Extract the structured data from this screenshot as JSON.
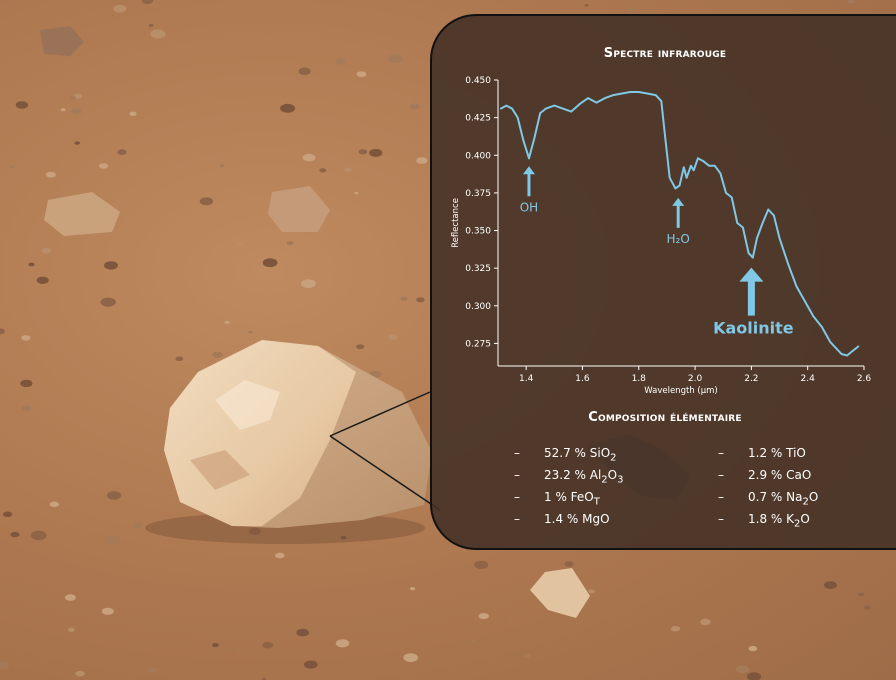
{
  "accent_color": "#7fc8e6",
  "panel": {
    "spectrum_title": "Spectre infrarouge",
    "composition_title": "Composition élémentaire"
  },
  "chart_data": {
    "type": "line",
    "title": "Spectre infrarouge",
    "xlabel": "Wavelength (µm)",
    "ylabel": "Reflectance",
    "xlim": [
      1.3,
      2.6
    ],
    "ylim": [
      0.26,
      0.45
    ],
    "xticks": [
      "1.4",
      "1.6",
      "1.8",
      "2.0",
      "2.2",
      "2.4",
      "2.6"
    ],
    "yticks": [
      "0.275",
      "0.300",
      "0.325",
      "0.350",
      "0.375",
      "0.400",
      "0.425",
      "0.450"
    ],
    "grid": false,
    "series": [
      {
        "color": "#7fc8e6",
        "x": [
          1.31,
          1.33,
          1.35,
          1.37,
          1.39,
          1.41,
          1.43,
          1.45,
          1.47,
          1.5,
          1.53,
          1.56,
          1.59,
          1.62,
          1.65,
          1.68,
          1.71,
          1.74,
          1.77,
          1.8,
          1.83,
          1.86,
          1.88,
          1.895,
          1.91,
          1.93,
          1.945,
          1.96,
          1.97,
          1.985,
          1.995,
          2.01,
          2.03,
          2.05,
          2.07,
          2.09,
          2.11,
          2.13,
          2.15,
          2.17,
          2.19,
          2.205,
          2.22,
          2.24,
          2.26,
          2.28,
          2.3,
          2.33,
          2.36,
          2.39,
          2.42,
          2.45,
          2.48,
          2.5,
          2.52,
          2.54,
          2.56,
          2.58
        ],
        "y": [
          0.431,
          0.433,
          0.431,
          0.425,
          0.41,
          0.398,
          0.412,
          0.428,
          0.431,
          0.433,
          0.431,
          0.429,
          0.434,
          0.438,
          0.435,
          0.438,
          0.44,
          0.441,
          0.442,
          0.442,
          0.441,
          0.44,
          0.436,
          0.41,
          0.385,
          0.378,
          0.38,
          0.392,
          0.385,
          0.393,
          0.39,
          0.398,
          0.396,
          0.393,
          0.393,
          0.388,
          0.375,
          0.372,
          0.355,
          0.352,
          0.335,
          0.332,
          0.345,
          0.355,
          0.364,
          0.36,
          0.345,
          0.328,
          0.313,
          0.303,
          0.293,
          0.286,
          0.276,
          0.272,
          0.268,
          0.267,
          0.27,
          0.273
        ]
      }
    ],
    "annotations": [
      {
        "text": "OH",
        "x": 1.41,
        "y": 0.398
      },
      {
        "text": "H₂O",
        "x": 1.94,
        "y": 0.377
      },
      {
        "text": "Kaolinite",
        "x": 2.2,
        "y": 0.332
      }
    ]
  },
  "composition": {
    "left": [
      {
        "dash": "–",
        "pct": "52.7 %",
        "formula": "SiO",
        "sub": "2"
      },
      {
        "dash": "–",
        "pct": "23.2 %",
        "formula": "Al",
        "sub": "2",
        "formula2": "O",
        "sub2": "3"
      },
      {
        "dash": "–",
        "pct": "1 %",
        "formula": "FeO",
        "sub": "T"
      },
      {
        "dash": "–",
        "pct": "1.4 %",
        "formula": "MgO",
        "sub": ""
      }
    ],
    "right": [
      {
        "dash": "–",
        "pct": "1.2 %",
        "formula": "TiO",
        "sub": ""
      },
      {
        "dash": "–",
        "pct": "2.9 %",
        "formula": "CaO",
        "sub": ""
      },
      {
        "dash": "–",
        "pct": "0.7 %",
        "formula": "Na",
        "sub": "2",
        "formula2": "O",
        "sub2": ""
      },
      {
        "dash": "–",
        "pct": "1.8 %",
        "formula": "K",
        "sub": "2",
        "formula2": "O",
        "sub2": ""
      }
    ]
  }
}
